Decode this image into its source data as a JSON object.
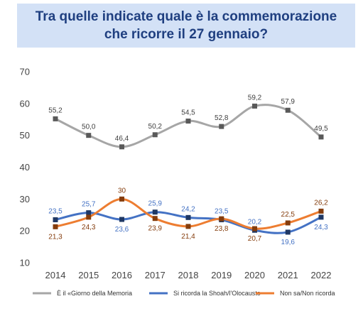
{
  "title": "Tra quelle indicate quale è la commemorazione che ricorre il 27 gennaio?",
  "chart_data": {
    "type": "line",
    "title": "Tra quelle indicate quale è la commemorazione che ricorre il 27 gennaio?",
    "xlabel": "",
    "ylabel": "",
    "categories": [
      "2014",
      "2015",
      "2016",
      "2017",
      "2018",
      "2019",
      "2020",
      "2021",
      "2022"
    ],
    "ylim": [
      10,
      70
    ],
    "yticks": [
      10,
      20,
      30,
      40,
      50,
      60,
      70
    ],
    "grid": false,
    "legend_position": "bottom",
    "series": [
      {
        "name": "È il «Giorno della Memoria",
        "color": "#a6a6a6",
        "marker_color": "#595959",
        "label_color": "#404040",
        "label_pos": "above",
        "values": [
          55.2,
          50.0,
          46.4,
          50.2,
          54.5,
          52.8,
          59.2,
          57.9,
          49.5
        ],
        "labels": [
          "55,2",
          "50,0",
          "46,4",
          "50,2",
          "54,5",
          "52,8",
          "59,2",
          "57,9",
          "49,5"
        ]
      },
      {
        "name": "Si ricorda la Shoah/l'Olocausto",
        "color": "#4472c4",
        "marker_color": "#1f3864",
        "label_color": "#4472c4",
        "label_pos": "mixed",
        "values": [
          23.5,
          25.7,
          23.6,
          25.9,
          24.2,
          23.5,
          20.2,
          19.6,
          24.3
        ],
        "labels": [
          "23,5",
          "25,7",
          "23,6",
          "25,9",
          "24,2",
          "23,5",
          "20,2",
          "19,6",
          "24,3"
        ]
      },
      {
        "name": "Non sa/Non ricorda",
        "color": "#ed7d31",
        "marker_color": "#843c0c",
        "label_color": "#843c0c",
        "label_pos": "mixed",
        "values": [
          21.3,
          24.3,
          30.0,
          23.9,
          21.4,
          23.8,
          20.7,
          22.5,
          26.2
        ],
        "labels": [
          "21,3",
          "24,3",
          "30",
          "23,9",
          "21,4",
          "23,8",
          "20,7",
          "22,5",
          "26,2"
        ]
      }
    ]
  }
}
